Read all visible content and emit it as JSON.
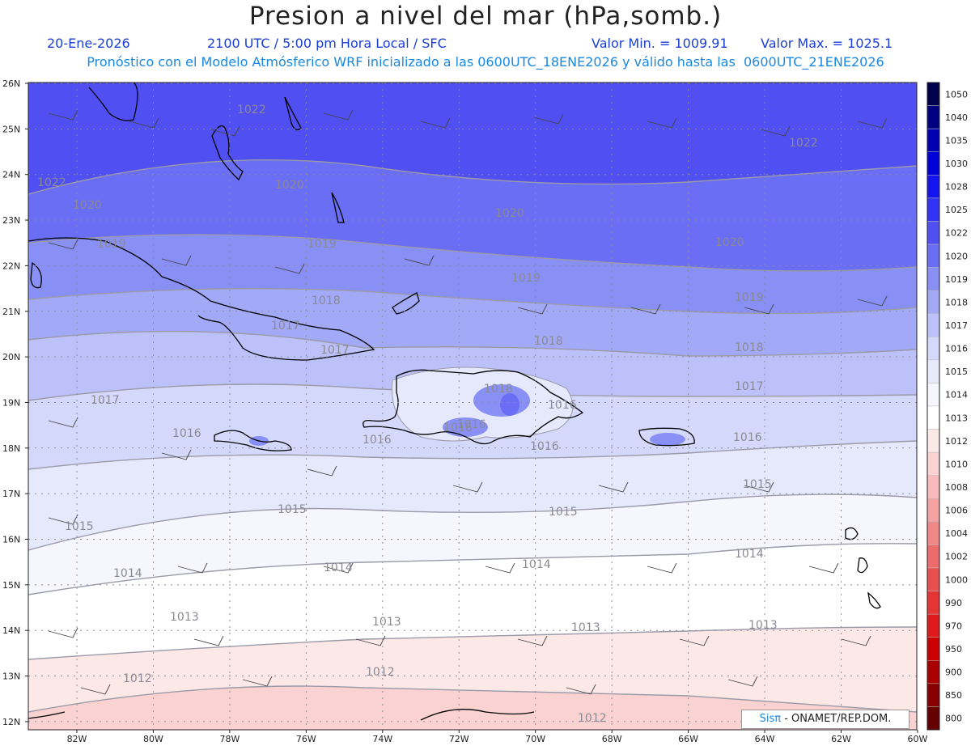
{
  "header": {
    "title": "Presion a nivel del mar (hPa,somb.)",
    "date": "20-Ene-2026",
    "time": "2100 UTC / 5:00 pm Hora Local / SFC",
    "valor_min": "Valor Min. = 1009.91",
    "valor_max": "Valor Max. = 1025.1",
    "model_line": "Pronóstico con el Modelo Atmósferico WRF inicializado a las 0600UTC_18ENE2026 y válido hasta las  0600UTC_21ENE2026"
  },
  "credit": {
    "sis": "Sisπ",
    "rest": " - ONAMET/REP.DOM."
  },
  "axes": {
    "lat_labels": [
      "26N",
      "25N",
      "24N",
      "23N",
      "22N",
      "21N",
      "20N",
      "19N",
      "18N",
      "17N",
      "16N",
      "15N",
      "14N",
      "13N",
      "12N"
    ],
    "lon_labels": [
      "82W",
      "80W",
      "78W",
      "76W",
      "74W",
      "72W",
      "70W",
      "68W",
      "66W",
      "64W",
      "62W",
      "60W"
    ]
  },
  "colorbar": {
    "levels": [
      "1050",
      "1040",
      "1035",
      "1030",
      "1028",
      "1025",
      "1022",
      "1020",
      "1019",
      "1018",
      "1017",
      "1016",
      "1015",
      "1014",
      "1013",
      "1012",
      "1010",
      "1008",
      "1006",
      "1004",
      "1002",
      "1000",
      "990",
      "970",
      "950",
      "900",
      "850",
      "800"
    ],
    "colors": [
      "#00004d",
      "#000080",
      "#0000b0",
      "#0000d8",
      "#1414f0",
      "#3232f5",
      "#5050f2",
      "#6a6ef4",
      "#8890f5",
      "#a2a9f7",
      "#bcc2f9",
      "#d4d8fb",
      "#e6e8fc",
      "#f6f6fe",
      "#ffffff",
      "#fde8e8",
      "#fbd2d2",
      "#f8baba",
      "#f4a2a2",
      "#f08888",
      "#ec6c6c",
      "#e85050",
      "#e43434",
      "#de1a1a",
      "#cc0000",
      "#aa0000",
      "#880000",
      "#660000"
    ]
  },
  "contour_labels": [
    "1022",
    "1022",
    "1022",
    "1020",
    "1020",
    "1020",
    "1020",
    "1019",
    "1019",
    "1019",
    "1019",
    "1018",
    "1018",
    "1018",
    "1018",
    "1017",
    "1017",
    "1017",
    "1017",
    "1016",
    "1016",
    "1016",
    "1016",
    "1015",
    "1015",
    "1015",
    "1015",
    "1014",
    "1014",
    "1014",
    "1014",
    "1013",
    "1013",
    "1013",
    "1013",
    "1012",
    "1012",
    "1012",
    "1016",
    "1016",
    "1016"
  ]
}
